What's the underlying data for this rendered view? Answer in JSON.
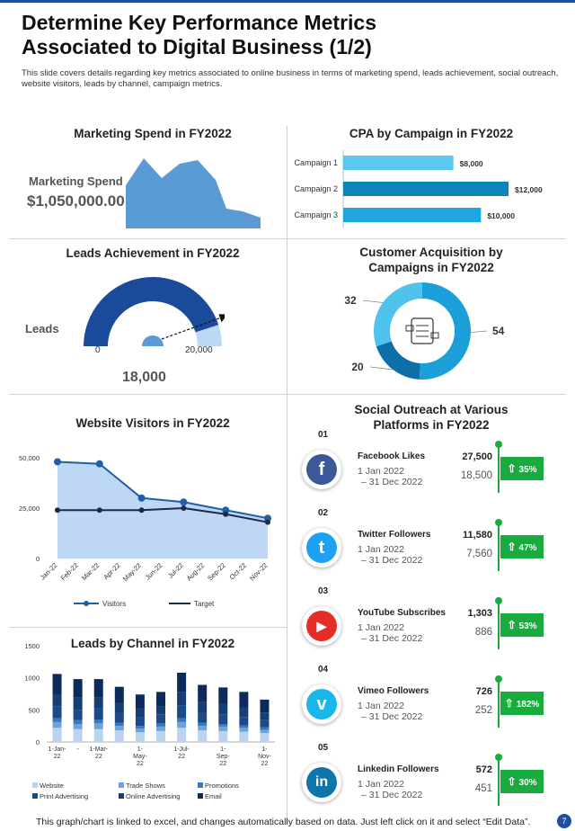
{
  "header": {
    "title_line1": "Determine Key Performance Metrics",
    "title_line2": "Associated to Digital Business (1/2)",
    "subtitle": "This slide covers details regarding key metrics associated to online business in terms of marketing spend, leads achievement, social outreach, website visitors, leads by channel, campaign metrics."
  },
  "marketing_spend": {
    "title": "Marketing Spend in FY2022",
    "label": "Marketing Spend",
    "value": "$1,050,000.00",
    "colors": {
      "area": "#5b9bd5"
    }
  },
  "cpa": {
    "title": "CPA by Campaign in FY2022",
    "chart_data": {
      "type": "bar",
      "orientation": "horizontal",
      "categories": [
        "Campaign 1",
        "Campaign 2",
        "Campaign 3"
      ],
      "values": [
        8000,
        12000,
        10000
      ],
      "value_labels": [
        "$8,000",
        "$12,000",
        "$10,000"
      ],
      "colors": [
        "#5bc8f0",
        "#0e84b8",
        "#1fa6e0"
      ]
    }
  },
  "leads_achievement": {
    "title": "Leads Achievement in FY2022",
    "label": "Leads",
    "min_label": "0",
    "max_label": "20,000",
    "value": "18,000",
    "achieved_fraction": 0.9
  },
  "customer_acquisition": {
    "title_line1": "Customer Acquisition by",
    "title_line2": "Campaigns in FY2022",
    "chart_data": {
      "type": "pie",
      "labels": [
        "32",
        "54",
        "20"
      ],
      "values": [
        32,
        54,
        20
      ],
      "colors": [
        "#4fc3ec",
        "#1a9fd9",
        "#0e6ea8"
      ]
    }
  },
  "website_visitors": {
    "title": "Website Visitors  in FY2022",
    "chart_data": {
      "type": "area",
      "categories": [
        "Jan-22",
        "Feb-22",
        "Mar-22",
        "Apr-22",
        "May-22",
        "Jun-22",
        "Jul-22",
        "Aug-22",
        "Sep-22",
        "Oct-22",
        "Nov-22"
      ],
      "ylim": [
        0,
        50000
      ],
      "yticks": [
        "0",
        "25,000",
        "50,000"
      ],
      "series": [
        {
          "name": "Visitors",
          "x": [
            0,
            2,
            4,
            6,
            8,
            10
          ],
          "values": [
            48000,
            47000,
            30000,
            28000,
            24000,
            20000
          ]
        },
        {
          "name": "Target",
          "x": [
            0,
            2,
            4,
            6,
            8,
            10
          ],
          "values": [
            24000,
            24000,
            24000,
            25000,
            22000,
            18000
          ]
        }
      ],
      "colors": {
        "area": "#bdd7f5",
        "visitors": "#1f5fa8",
        "target": "#1a2a4a"
      }
    }
  },
  "leads_channel": {
    "title": "Leads by Channel in FY2022",
    "chart_data": {
      "type": "bar",
      "stacked": true,
      "ylim": [
        0,
        1500
      ],
      "yticks": [
        "0",
        "500",
        "1000",
        "1500"
      ],
      "x_tick_labels": [
        {
          "index": 0,
          "text": "1-Jan-\n22"
        },
        {
          "index": 1,
          "text": "-"
        },
        {
          "index": 2,
          "text": "1-Mar-\n22"
        },
        {
          "index": 4,
          "text": "1-\nMay-\n22"
        },
        {
          "index": 6,
          "text": "1-Jul-\n22"
        },
        {
          "index": 8,
          "text": "1-\nSep-\n22"
        },
        {
          "index": 10,
          "text": "1-\nNov-\n22"
        }
      ],
      "series": [
        {
          "name": "Website",
          "color": "#bcd3ee",
          "values": [
            220,
            200,
            200,
            180,
            150,
            170,
            220,
            180,
            170,
            160,
            140
          ]
        },
        {
          "name": "Trade Shows",
          "color": "#6fa3d8",
          "values": [
            90,
            80,
            90,
            70,
            60,
            70,
            90,
            70,
            70,
            60,
            50
          ]
        },
        {
          "name": "Promotions",
          "color": "#3a78bd",
          "values": [
            60,
            60,
            60,
            50,
            40,
            50,
            60,
            50,
            40,
            40,
            40
          ]
        },
        {
          "name": "Print Advertising",
          "color": "#1a4a8a",
          "values": [
            180,
            160,
            170,
            150,
            130,
            140,
            200,
            150,
            150,
            130,
            110
          ]
        },
        {
          "name": "Online Advertising",
          "color": "#153e75",
          "values": [
            200,
            190,
            180,
            160,
            140,
            130,
            210,
            170,
            160,
            150,
            120
          ]
        },
        {
          "name": "Email",
          "color": "#0d2b5a",
          "values": [
            310,
            290,
            280,
            250,
            220,
            220,
            300,
            270,
            260,
            240,
            200
          ]
        }
      ]
    }
  },
  "social": {
    "title_line1": "Social Outreach at Various",
    "title_line2": "Platforms in FY2022",
    "items": [
      {
        "num": "01",
        "name": "Facebook Likes",
        "date1": "1 Jan 2022",
        "date2": "– 31 Dec 2022",
        "value": "27,500",
        "prev": "18,500",
        "pct": "35%",
        "icon": "f",
        "color": "#3b5998",
        "icon_name": "facebook-icon"
      },
      {
        "num": "02",
        "name": "Twitter Followers",
        "date1": "1 Jan 2022",
        "date2": "– 31 Dec 2022",
        "value": "11,580",
        "prev": "7,560",
        "pct": "47%",
        "icon": "t",
        "color": "#1da1f2",
        "icon_name": "twitter-icon"
      },
      {
        "num": "03",
        "name": "YouTube Subscribes",
        "date1": "1 Jan 2022",
        "date2": "– 31 Dec 2022",
        "value": "1,303",
        "prev": "886",
        "pct": "53%",
        "icon": "▶",
        "color": "#e52d27",
        "icon_name": "youtube-icon"
      },
      {
        "num": "04",
        "name": "Vimeo Followers",
        "date1": "1 Jan 2022",
        "date2": "– 31 Dec 2022",
        "value": "726",
        "prev": "252",
        "pct": "182%",
        "icon": "v",
        "color": "#1ab7ea",
        "icon_name": "vimeo-icon"
      },
      {
        "num": "05",
        "name": "Linkedin Followers",
        "date1": "1 Jan 2022",
        "date2": "– 31 Dec 2022",
        "value": "572",
        "prev": "451",
        "pct": "30%",
        "icon": "in",
        "color": "#0e76a8",
        "icon_name": "linkedin-icon"
      }
    ]
  },
  "footer": {
    "text": "This graph/chart is linked to excel,  and changes automatically based on data. Just left click on it and select “Edit Data”.",
    "page": "7"
  }
}
